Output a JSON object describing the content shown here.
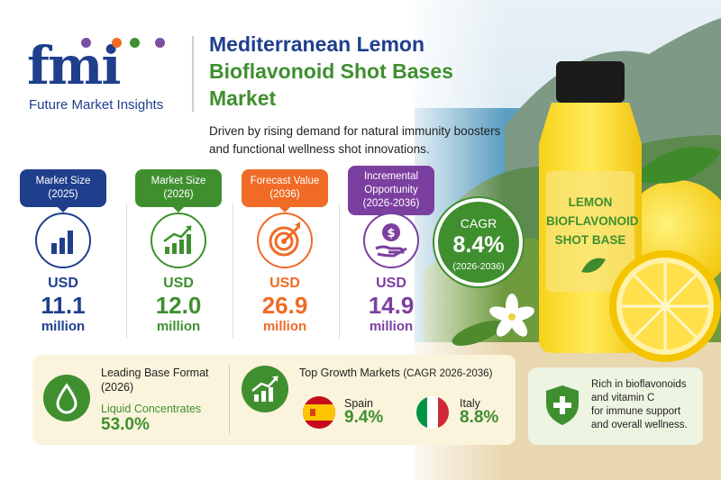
{
  "logo": {
    "wordmark": "fmi",
    "tagline": "Future Market Insights",
    "dot_colors": [
      "#7b4fa0",
      "#f06b25",
      "#3f8f2f",
      "#7b4fa0"
    ]
  },
  "header": {
    "title_line1": "Mediterranean Lemon",
    "title_line2": "Bioflavonoid Shot Bases",
    "title_line3": "Market",
    "subtitle": "Driven by rising demand for natural immunity boosters and functional wellness shot innovations."
  },
  "stats": [
    {
      "label_line1": "Market Size",
      "label_line2": "(2025)",
      "currency": "USD",
      "value": "11.1",
      "unit": "million",
      "color": "#1f3f8c",
      "icon": "bar-chart-icon"
    },
    {
      "label_line1": "Market Size",
      "label_line2": "(2026)",
      "currency": "USD",
      "value": "12.0",
      "unit": "million",
      "color": "#3f8f2f",
      "icon": "growth-chart-icon"
    },
    {
      "label_line1": "Forecast Value",
      "label_line2": "(2036)",
      "currency": "USD",
      "value": "26.9",
      "unit": "million",
      "color": "#f06b25",
      "icon": "target-icon"
    },
    {
      "label_line1": "Incremental",
      "label_line2": "Opportunity",
      "label_line3": "(2026-2036)",
      "currency": "USD",
      "value": "14.9",
      "unit": "million",
      "color": "#7b3fa0",
      "icon": "money-hand-icon"
    }
  ],
  "cagr": {
    "label": "CAGR",
    "value": "8.4%",
    "period": "(2026-2036)"
  },
  "bottle": {
    "label_line1": "LEMON",
    "label_line2": "BIOFLAVONOID",
    "label_line3": "SHOT BASE"
  },
  "leading_format": {
    "title_line1": "Leading Base Format",
    "title_line2": "(2026)",
    "segment": "Liquid Concentrates",
    "share": "53.0%"
  },
  "growth_markets": {
    "title": "Top Growth Markets",
    "title_suffix": "(CAGR 2026-2036)",
    "countries": [
      {
        "name": "Spain",
        "cagr": "9.4%"
      },
      {
        "name": "Italy",
        "cagr": "8.8%"
      }
    ]
  },
  "note": {
    "line1": "Rich in bioflavonoids",
    "line2": "and vitamin C",
    "line3": "for immune support",
    "line4": "and overall wellness."
  }
}
